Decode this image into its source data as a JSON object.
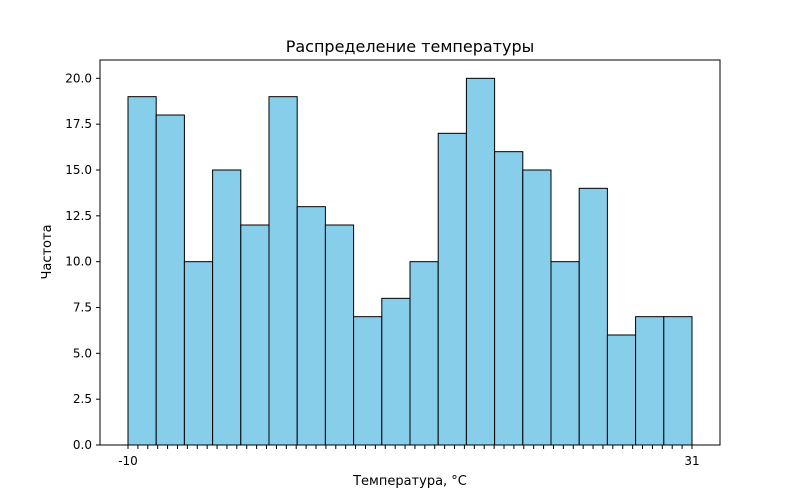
{
  "chart_data": {
    "type": "bar",
    "title": "Распределение температуры",
    "xlabel": "Температура, °C",
    "ylabel": "Частота",
    "ylim": [
      0,
      21
    ],
    "yticks": [
      0,
      2.5,
      5,
      7.5,
      10,
      12.5,
      15,
      17.5,
      20
    ],
    "ytick_labels": [
      "0.0",
      "2.5",
      "5.0",
      "7.5",
      "10.0",
      "12.5",
      "15.0",
      "17.5",
      "20.0"
    ],
    "values": [
      19,
      18,
      10,
      15,
      12,
      19,
      13,
      12,
      7,
      8,
      10,
      17,
      20,
      16,
      15,
      10,
      14,
      6,
      7,
      7
    ],
    "x_tick_edge_labels": {
      "first": "-10",
      "last": "31"
    },
    "grid": false,
    "colors": {
      "bar_fill": "#87ceeb",
      "bar_edge": "#000000",
      "axis": "#000000"
    }
  }
}
